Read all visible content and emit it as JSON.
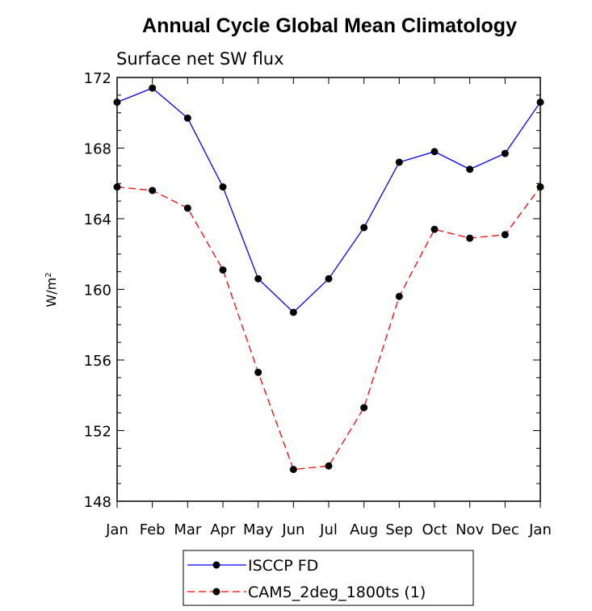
{
  "chart_data": {
    "type": "line",
    "title": "Annual Cycle Global Mean Climatology",
    "subtitle": "Surface net SW flux",
    "xlabel": "",
    "ylabel": "W/m",
    "ylabel_sup": "2",
    "categories": [
      "Jan",
      "Feb",
      "Mar",
      "Apr",
      "May",
      "Jun",
      "Jul",
      "Aug",
      "Sep",
      "Oct",
      "Nov",
      "Dec",
      "Jan"
    ],
    "ylim": [
      148,
      172
    ],
    "yticks": [
      148,
      152,
      156,
      160,
      164,
      168,
      172
    ],
    "grid": false,
    "legend_position": "bottom",
    "series": [
      {
        "name": "ISCCP FD",
        "color": "#0000ff",
        "dashed": false,
        "values": [
          170.6,
          171.4,
          169.7,
          165.8,
          160.6,
          158.7,
          160.6,
          163.5,
          167.2,
          167.8,
          166.8,
          167.7,
          170.6
        ]
      },
      {
        "name": "CAM5_2deg_1800ts (1)",
        "color": "#ff0000",
        "dashed": true,
        "values": [
          165.8,
          165.6,
          164.6,
          161.1,
          155.3,
          149.8,
          150.0,
          153.3,
          159.6,
          163.4,
          162.9,
          163.1,
          165.8
        ]
      }
    ]
  }
}
